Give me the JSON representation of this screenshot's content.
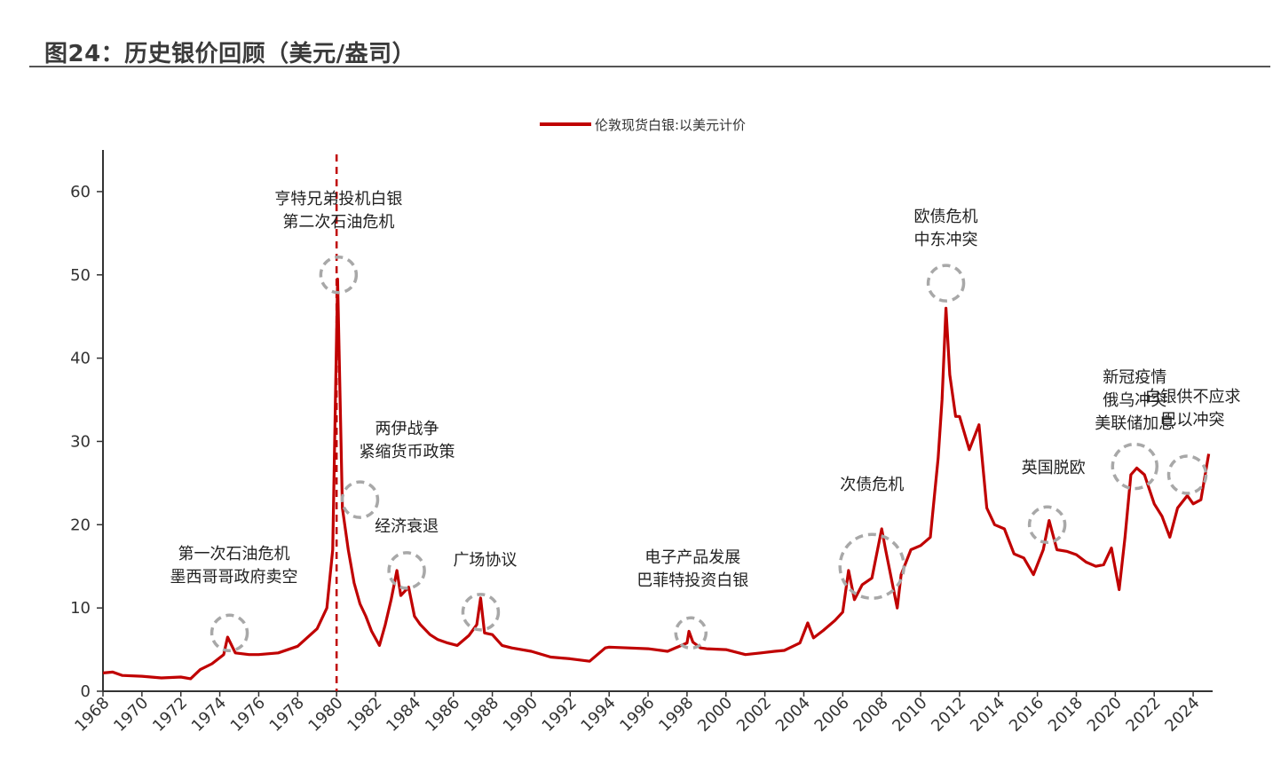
{
  "figure_title": "图24：历史银价回顾（美元/盎司）",
  "colors": {
    "series": "#c00000",
    "annotation_circle": "#a8a8a8",
    "axis": "#333333"
  },
  "chart_data": {
    "type": "line",
    "title": "",
    "xlabel": "",
    "ylabel": "",
    "xlim": [
      1968,
      2025
    ],
    "ylim": [
      0,
      65
    ],
    "x_ticks": [
      "1968",
      "1970",
      "1972",
      "1974",
      "1976",
      "1978",
      "1980",
      "1982",
      "1984",
      "1986",
      "1988",
      "1990",
      "1992",
      "1994",
      "1996",
      "1998",
      "2000",
      "2002",
      "2004",
      "2006",
      "2008",
      "2010",
      "2012",
      "2014",
      "2016",
      "2018",
      "2020",
      "2022",
      "2024"
    ],
    "y_ticks": [
      0,
      10,
      20,
      30,
      40,
      50,
      60
    ],
    "grid": false,
    "legend_position": "top-center",
    "series": [
      {
        "name": "伦敦现货白银:以美元计价",
        "x": [
          1968,
          1968.5,
          1969,
          1970,
          1971,
          1972,
          1972.5,
          1973,
          1973.6,
          1974.2,
          1974.4,
          1974.8,
          1975.5,
          1976,
          1977,
          1978,
          1979,
          1979.5,
          1979.8,
          1980.05,
          1980.3,
          1980.6,
          1980.9,
          1981.2,
          1981.5,
          1981.8,
          1982.2,
          1982.5,
          1982.8,
          1983.1,
          1983.3,
          1983.7,
          1984,
          1984.3,
          1984.8,
          1985.2,
          1985.7,
          1986.2,
          1986.8,
          1987.2,
          1987.4,
          1987.6,
          1988,
          1988.5,
          1989,
          1990,
          1991,
          1992,
          1993,
          1993.8,
          1994,
          1995,
          1996,
          1997,
          1998,
          1998.1,
          1998.3,
          1998.7,
          1999,
          2000,
          2001,
          2001.8,
          2002.5,
          2003,
          2003.8,
          2004.2,
          2004.5,
          2005,
          2005.6,
          2006,
          2006.3,
          2006.6,
          2007,
          2007.5,
          2008,
          2008.2,
          2008.8,
          2009,
          2009.5,
          2010,
          2010.5,
          2010.9,
          2011.1,
          2011.3,
          2011.5,
          2011.8,
          2012,
          2012.5,
          2013,
          2013.4,
          2013.8,
          2014.3,
          2014.8,
          2015.3,
          2015.8,
          2016.3,
          2016.6,
          2017,
          2017.5,
          2018,
          2018.5,
          2019,
          2019.4,
          2019.8,
          2020.2,
          2020.5,
          2020.8,
          2021.1,
          2021.5,
          2022,
          2022.4,
          2022.8,
          2023.2,
          2023.7,
          2024,
          2024.4,
          2024.8
        ],
        "values": [
          2.2,
          2.3,
          1.9,
          1.8,
          1.6,
          1.7,
          1.5,
          2.6,
          3.3,
          4.4,
          6.5,
          4.6,
          4.4,
          4.4,
          4.6,
          5.4,
          7.5,
          10,
          17,
          49.5,
          22,
          17,
          13,
          10.5,
          9,
          7.2,
          5.5,
          8,
          11,
          14.5,
          11.5,
          12.5,
          9,
          8,
          6.8,
          6.2,
          5.8,
          5.5,
          6.7,
          8,
          11.2,
          7,
          6.8,
          5.5,
          5.2,
          4.8,
          4.1,
          3.9,
          3.6,
          5.2,
          5.3,
          5.2,
          5.1,
          4.8,
          5.8,
          7.2,
          5.9,
          5.2,
          5.1,
          5,
          4.4,
          4.6,
          4.8,
          4.9,
          5.8,
          8.2,
          6.4,
          7.3,
          8.5,
          9.5,
          14.5,
          11,
          12.8,
          13.6,
          19.5,
          17,
          10,
          14,
          17,
          17.5,
          18.5,
          28,
          35,
          46,
          38,
          33,
          33,
          29,
          32,
          22,
          20,
          19.5,
          16.5,
          16,
          14,
          17,
          20.5,
          17,
          16.8,
          16.4,
          15.5,
          15,
          15.2,
          17.2,
          12.2,
          18.5,
          26,
          26.8,
          26,
          22.5,
          21,
          18.5,
          22,
          23.5,
          22.5,
          23,
          28.5
        ]
      }
    ],
    "annotations": [
      {
        "lines": [
          "第一次石油危机",
          "墨西哥哥政府卖空"
        ],
        "x": 1974.5,
        "y": 7
      },
      {
        "lines": [
          "亨特兄弟投机白银",
          "第二次石油危机"
        ],
        "x": 1980.1,
        "y": 50
      },
      {
        "lines": [
          "两伊战争",
          "紧缩货币政策"
        ],
        "x": 1981.2,
        "y": 23
      },
      {
        "lines": [
          "经济衰退"
        ],
        "x": 1983.6,
        "y": 14.5
      },
      {
        "lines": [
          "广场协议"
        ],
        "x": 1987.4,
        "y": 9.5
      },
      {
        "lines": [
          "电子产品发展",
          "巴菲特投资白银"
        ],
        "x": 1998.2,
        "y": 7
      },
      {
        "lines": [
          "次债危机"
        ],
        "x": 2007.5,
        "y": 15
      },
      {
        "lines": [
          "欧债危机",
          "中东冲突"
        ],
        "x": 2011.3,
        "y": 49
      },
      {
        "lines": [
          "英国脱欧"
        ],
        "x": 2016.5,
        "y": 20
      },
      {
        "lines": [
          "新冠疫情",
          "俄乌冲突",
          "美联储加息"
        ],
        "x": 2021,
        "y": 27
      },
      {
        "lines": [
          "白银供不应求",
          "巴以冲突"
        ],
        "x": 2023.7,
        "y": 26
      }
    ],
    "reference_line": {
      "x": 1980
    }
  }
}
